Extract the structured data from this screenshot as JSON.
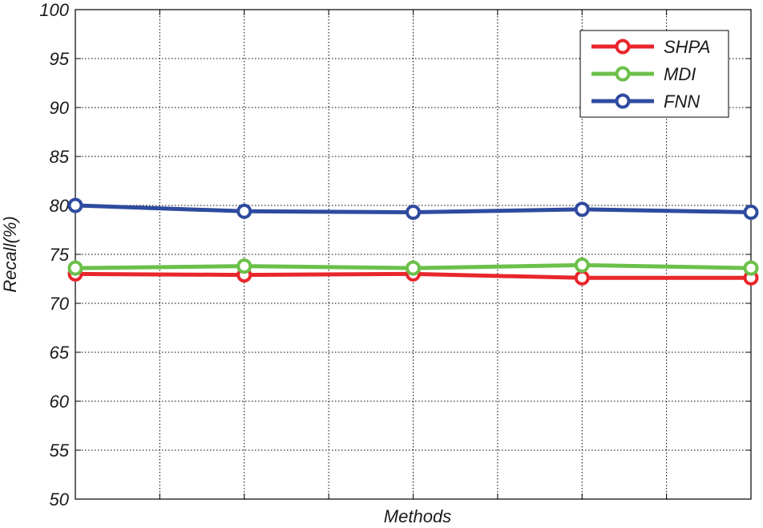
{
  "chart_data": {
    "type": "line",
    "xlabel": "Methods",
    "ylabel": "Recall(%)",
    "ylim": [
      50,
      100
    ],
    "yticks": [
      50,
      55,
      60,
      65,
      70,
      75,
      80,
      85,
      90,
      95,
      100
    ],
    "ytick_labels": [
      "50",
      "55",
      "60",
      "65",
      "70",
      "75",
      "80",
      "85",
      "90",
      "95",
      "100"
    ],
    "x": [
      1,
      2,
      3,
      4,
      5,
      6,
      7,
      8,
      9
    ],
    "xlim": [
      1,
      9
    ],
    "grid": true,
    "legend_position": "top-right",
    "series": [
      {
        "name": "SHPA",
        "color": "#e8262b",
        "x": [
          1,
          3,
          5,
          7,
          9
        ],
        "values": [
          73.0,
          72.9,
          73.0,
          72.6,
          72.6
        ]
      },
      {
        "name": "MDI",
        "color": "#6cc04a",
        "x": [
          1,
          3,
          5,
          7,
          9
        ],
        "values": [
          73.6,
          73.8,
          73.6,
          73.9,
          73.6
        ]
      },
      {
        "name": "FNN",
        "color": "#2e4b9e",
        "x": [
          1,
          3,
          5,
          7,
          9
        ],
        "values": [
          80.0,
          79.4,
          79.3,
          79.6,
          79.3
        ]
      }
    ]
  }
}
